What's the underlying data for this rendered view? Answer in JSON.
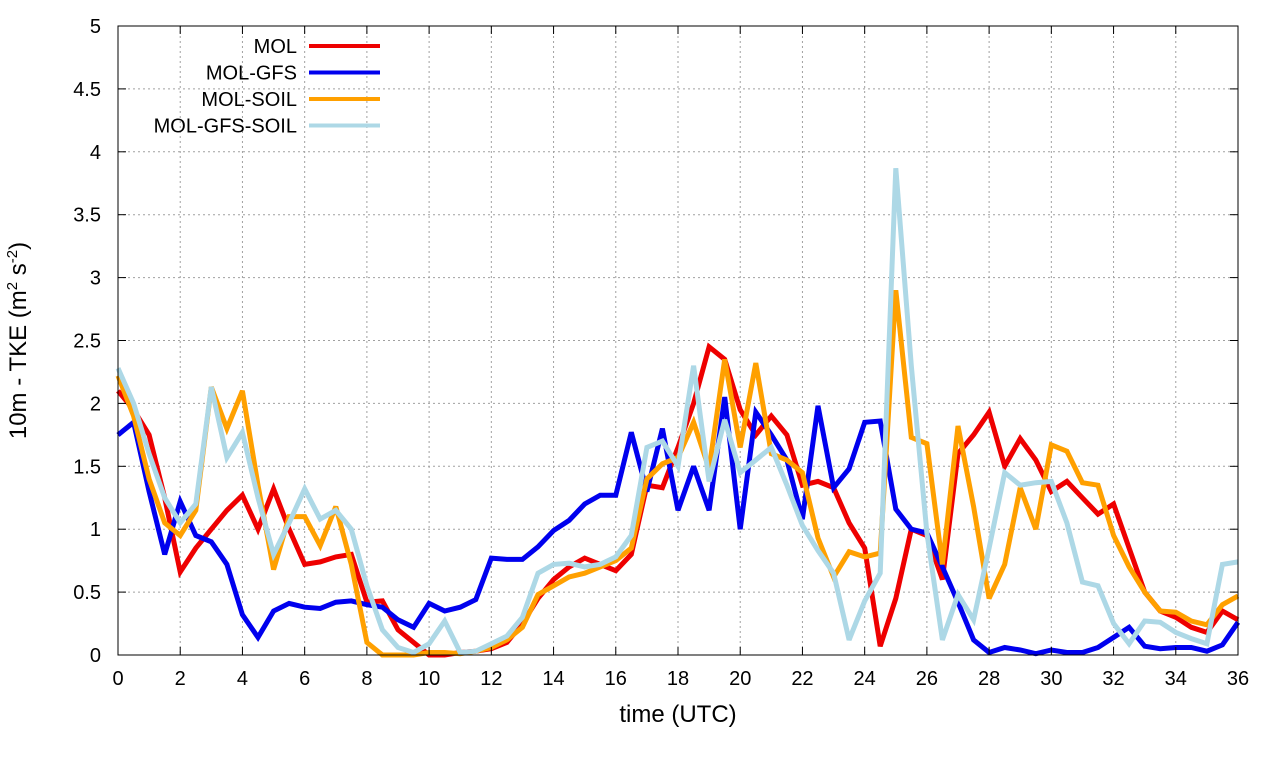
{
  "chart_data": {
    "type": "line",
    "title": "",
    "xlabel": "time (UTC)",
    "ylabel_parts": [
      "10m - TKE (m",
      "2",
      " s",
      "-2",
      ")"
    ],
    "xlim": [
      0,
      36
    ],
    "ylim": [
      0,
      5
    ],
    "xticks": [
      0,
      2,
      4,
      6,
      8,
      10,
      12,
      14,
      16,
      18,
      20,
      22,
      24,
      26,
      28,
      30,
      32,
      34,
      36
    ],
    "yticks": [
      0,
      0.5,
      1,
      1.5,
      2,
      2.5,
      3,
      3.5,
      4,
      4.5,
      5
    ],
    "ytick_labels": [
      "0",
      "0.5",
      "1",
      "1.5",
      "2",
      "2.5",
      "3",
      "3.5",
      "4",
      "4.5",
      "5"
    ],
    "grid": true,
    "legend_position": "top-left",
    "series": [
      {
        "name": "MOL",
        "color": "#ee0000",
        "x": [
          0,
          0.5,
          1,
          1.5,
          2,
          2.5,
          3,
          3.5,
          4,
          4.5,
          5,
          5.5,
          6,
          6.5,
          7,
          7.5,
          8,
          8.5,
          9,
          9.5,
          10,
          10.5,
          11,
          11.5,
          12,
          12.5,
          13,
          13.5,
          14,
          14.5,
          15,
          15.5,
          16,
          16.5,
          17,
          17.5,
          18,
          18.5,
          19,
          19.5,
          20,
          20.5,
          21,
          21.5,
          22,
          22.5,
          23,
          23.5,
          24,
          24.5,
          25,
          25.5,
          26,
          26.5,
          27,
          27.5,
          28,
          28.5,
          29,
          29.5,
          30,
          30.5,
          31,
          31.5,
          32,
          32.5,
          33,
          33.5,
          34,
          34.5,
          35,
          35.5,
          36
        ],
        "values": [
          2.1,
          1.95,
          1.75,
          1.25,
          0.66,
          0.85,
          1.0,
          1.15,
          1.27,
          1.0,
          1.32,
          1.0,
          0.72,
          0.74,
          0.78,
          0.8,
          0.42,
          0.43,
          0.2,
          0.1,
          0.0,
          0.0,
          0.02,
          0.03,
          0.05,
          0.1,
          0.25,
          0.45,
          0.6,
          0.7,
          0.77,
          0.72,
          0.67,
          0.8,
          1.35,
          1.33,
          1.65,
          2.0,
          2.45,
          2.35,
          1.95,
          1.75,
          1.9,
          1.75,
          1.35,
          1.38,
          1.33,
          1.05,
          0.85,
          0.07,
          0.45,
          1.0,
          0.95,
          0.6,
          1.6,
          1.75,
          1.93,
          1.5,
          1.72,
          1.55,
          1.3,
          1.38,
          1.25,
          1.12,
          1.2,
          0.85,
          0.5,
          0.35,
          0.3,
          0.22,
          0.18,
          0.35,
          0.28
        ]
      },
      {
        "name": "MOL-GFS",
        "color": "#0000ee",
        "x": [
          0,
          0.5,
          1,
          1.5,
          2,
          2.5,
          3,
          3.5,
          4,
          4.5,
          5,
          5.5,
          6,
          6.5,
          7,
          7.5,
          8,
          8.5,
          9,
          9.5,
          10,
          10.5,
          11,
          11.5,
          12,
          12.5,
          13,
          13.5,
          14,
          14.5,
          15,
          15.5,
          16,
          16.5,
          17,
          17.5,
          18,
          18.5,
          19,
          19.5,
          20,
          20.5,
          21,
          21.5,
          22,
          22.5,
          23,
          23.5,
          24,
          24.5,
          25,
          25.5,
          26,
          26.5,
          27,
          27.5,
          28,
          28.5,
          29,
          29.5,
          30,
          30.5,
          31,
          31.5,
          32,
          32.5,
          33,
          33.5,
          34,
          34.5,
          35,
          35.5,
          36
        ],
        "values": [
          1.75,
          1.85,
          1.3,
          0.8,
          1.22,
          0.95,
          0.9,
          0.72,
          0.32,
          0.14,
          0.35,
          0.41,
          0.38,
          0.37,
          0.42,
          0.43,
          0.4,
          0.38,
          0.28,
          0.22,
          0.41,
          0.35,
          0.38,
          0.44,
          0.77,
          0.76,
          0.76,
          0.86,
          0.99,
          1.07,
          1.2,
          1.27,
          1.27,
          1.77,
          1.3,
          1.8,
          1.15,
          1.5,
          1.15,
          2.05,
          1.0,
          1.93,
          1.75,
          1.55,
          1.08,
          1.98,
          1.33,
          1.48,
          1.85,
          1.86,
          1.16,
          1.0,
          0.97,
          0.7,
          0.42,
          0.12,
          0.02,
          0.06,
          0.04,
          0.01,
          0.04,
          0.02,
          0.02,
          0.06,
          0.14,
          0.22,
          0.07,
          0.05,
          0.06,
          0.06,
          0.03,
          0.08,
          0.26
        ]
      },
      {
        "name": "MOL-SOIL",
        "color": "#ffa000",
        "x": [
          0,
          0.5,
          1,
          1.5,
          2,
          2.5,
          3,
          3.5,
          4,
          4.5,
          5,
          5.5,
          6,
          6.5,
          7,
          7.5,
          8,
          8.5,
          9,
          9.5,
          10,
          10.5,
          11,
          11.5,
          12,
          12.5,
          13,
          13.5,
          14,
          14.5,
          15,
          15.5,
          16,
          16.5,
          17,
          17.5,
          18,
          18.5,
          19,
          19.5,
          20,
          20.5,
          21,
          21.5,
          22,
          22.5,
          23,
          23.5,
          24,
          24.5,
          25,
          25.5,
          26,
          26.5,
          27,
          27.5,
          28,
          28.5,
          29,
          29.5,
          30,
          30.5,
          31,
          31.5,
          32,
          32.5,
          33,
          33.5,
          34,
          34.5,
          35,
          35.5,
          36
        ],
        "values": [
          2.22,
          1.9,
          1.4,
          1.05,
          0.95,
          1.15,
          2.13,
          1.8,
          2.1,
          1.35,
          0.68,
          1.1,
          1.1,
          0.87,
          1.18,
          0.72,
          0.1,
          0.0,
          0.0,
          0.0,
          0.02,
          0.02,
          0.01,
          0.03,
          0.06,
          0.12,
          0.22,
          0.48,
          0.55,
          0.62,
          0.65,
          0.7,
          0.75,
          0.85,
          1.4,
          1.52,
          1.57,
          1.85,
          1.48,
          2.35,
          1.65,
          2.32,
          1.6,
          1.55,
          1.45,
          0.93,
          0.62,
          0.82,
          0.78,
          0.81,
          2.9,
          1.73,
          1.68,
          0.72,
          1.82,
          1.18,
          0.45,
          0.72,
          1.33,
          1.0,
          1.67,
          1.62,
          1.37,
          1.35,
          0.95,
          0.7,
          0.5,
          0.35,
          0.34,
          0.27,
          0.24,
          0.4,
          0.47
        ]
      },
      {
        "name": "MOL-GFS-SOIL",
        "color": "#add8e6",
        "x": [
          0,
          0.5,
          1,
          1.5,
          2,
          2.5,
          3,
          3.5,
          4,
          4.5,
          5,
          5.5,
          6,
          6.5,
          7,
          7.5,
          8,
          8.5,
          9,
          9.5,
          10,
          10.5,
          11,
          11.5,
          12,
          12.5,
          13,
          13.5,
          14,
          14.5,
          15,
          15.5,
          16,
          16.5,
          17,
          17.5,
          18,
          18.5,
          19,
          19.5,
          20,
          20.5,
          21,
          21.5,
          22,
          22.5,
          23,
          23.5,
          24,
          24.5,
          25,
          25.5,
          26,
          26.5,
          27,
          27.5,
          28,
          28.5,
          29,
          29.5,
          30,
          30.5,
          31,
          31.5,
          32,
          32.5,
          33,
          33.5,
          34,
          34.5,
          35,
          35.5,
          36
        ],
        "values": [
          2.28,
          2.0,
          1.6,
          1.25,
          1.05,
          1.2,
          2.13,
          1.57,
          1.77,
          1.25,
          0.8,
          1.05,
          1.32,
          1.08,
          1.15,
          1.0,
          0.55,
          0.2,
          0.06,
          0.02,
          0.09,
          0.27,
          0.02,
          0.03,
          0.09,
          0.15,
          0.3,
          0.65,
          0.72,
          0.73,
          0.7,
          0.72,
          0.78,
          0.95,
          1.65,
          1.7,
          1.5,
          2.3,
          1.38,
          1.87,
          1.45,
          1.55,
          1.65,
          1.35,
          1.03,
          0.83,
          0.65,
          0.12,
          0.43,
          0.65,
          3.87,
          2.3,
          0.97,
          0.12,
          0.48,
          0.28,
          0.85,
          1.45,
          1.35,
          1.37,
          1.38,
          1.05,
          0.58,
          0.55,
          0.25,
          0.09,
          0.27,
          0.26,
          0.18,
          0.13,
          0.09,
          0.72,
          0.74
        ]
      }
    ]
  }
}
